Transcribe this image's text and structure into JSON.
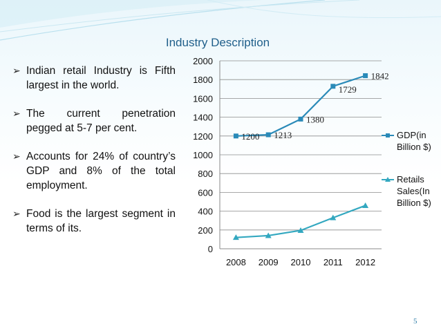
{
  "slide": {
    "title": "Industry Description",
    "page_number": "5",
    "bullets": [
      "Indian retail Industry is Fifth largest in the world.",
      "The current penetration pegged at 5-7 per cent.",
      "Accounts for 24% of country’s GDP and 8% of the total employment.",
      "Food is the largest segment in terms of its."
    ]
  },
  "chart_data": {
    "type": "line",
    "categories": [
      "2008",
      "2009",
      "2010",
      "2011",
      "2012"
    ],
    "ylim": [
      0,
      2000
    ],
    "yticks": [
      "0",
      "200",
      "400",
      "600",
      "800",
      "1000",
      "1200",
      "1400",
      "1600",
      "1800",
      "2000"
    ],
    "grid": true,
    "legend_position": "right",
    "series": [
      {
        "name": "GDP(in Billion $)",
        "legend_lines": [
          "GDP(in",
          "Billion $)"
        ],
        "values": [
          1200,
          1213,
          1380,
          1729,
          1842
        ],
        "data_labels": [
          "1200",
          "1213",
          "1380",
          "1729",
          "1842"
        ],
        "color": "#2a8ab8",
        "marker": "square"
      },
      {
        "name": "Retails Sales(In Billion $)",
        "legend_lines": [
          "Retails",
          "Sales(In",
          "Billion $)"
        ],
        "values": [
          120,
          140,
          195,
          330,
          460
        ],
        "color": "#33a8c0",
        "marker": "triangle"
      }
    ]
  }
}
